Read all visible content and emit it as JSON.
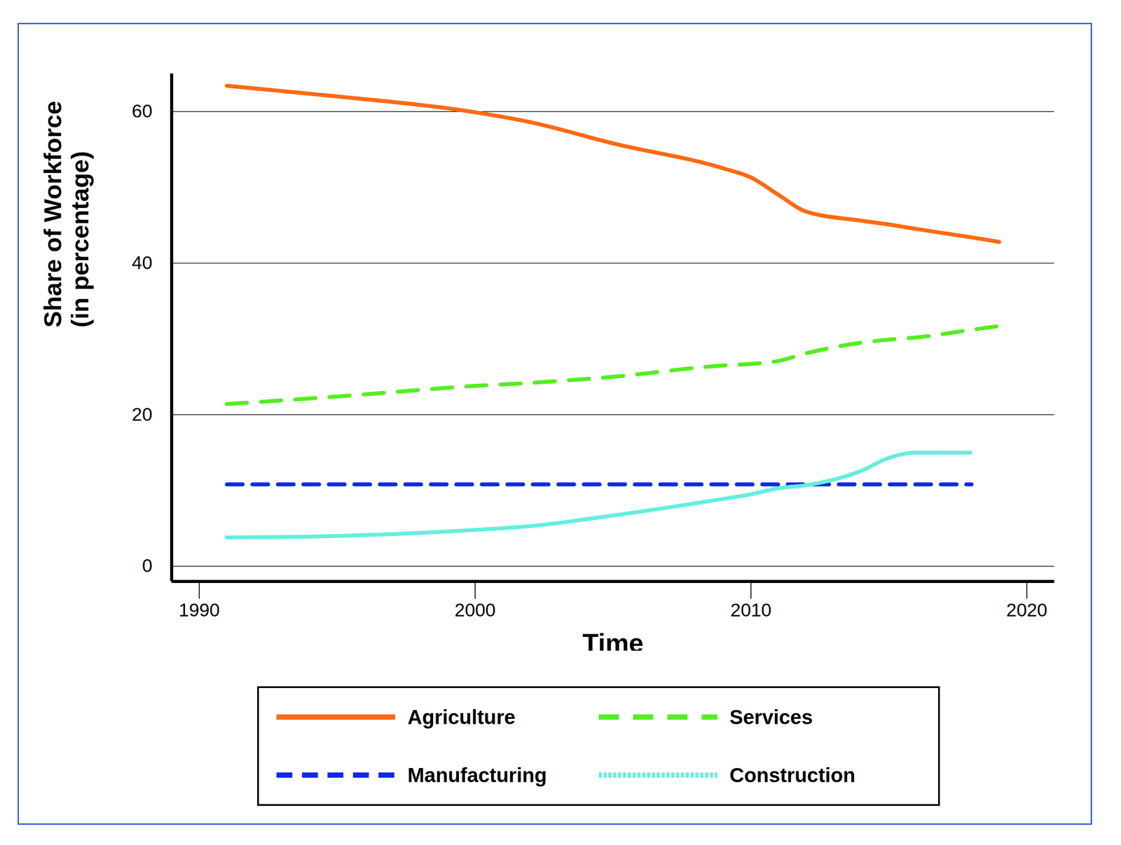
{
  "chart_data": {
    "type": "line",
    "x_label": "Time",
    "y_label": "Share of Workforce\n(in percentage)",
    "x": [
      1991,
      1995,
      2000,
      2002,
      2005,
      2009,
      2010,
      2011,
      2012,
      2014,
      2015,
      2016,
      2018,
      2019
    ],
    "series": [
      {
        "name": "Agriculture",
        "color": "#ff6a13",
        "line_style": "solid",
        "values": [
          63.4,
          62.0,
          59.9,
          58.6,
          55.8,
          52.5,
          51.3,
          49.0,
          46.8,
          45.6,
          45.1,
          44.5,
          43.4,
          42.8
        ]
      },
      {
        "name": "Services",
        "color": "#55ee22",
        "line_style": "dashed",
        "values": [
          21.4,
          22.4,
          23.8,
          24.2,
          25.0,
          26.5,
          26.7,
          27.1,
          28.1,
          29.5,
          29.9,
          30.2,
          31.2,
          31.7
        ]
      },
      {
        "name": "Manufacturing",
        "color": "#1128ee",
        "line_style": "dashed",
        "values": [
          10.8,
          10.8,
          10.8,
          10.8,
          10.8,
          10.8,
          10.8,
          10.8,
          10.8,
          10.8,
          10.8,
          10.8,
          10.8,
          null
        ]
      },
      {
        "name": "Construction",
        "color": "#66eedd",
        "line_style": "dotted",
        "values": [
          3.8,
          4.0,
          4.8,
          5.3,
          6.7,
          8.9,
          9.5,
          10.3,
          10.7,
          12.6,
          14.3,
          15.0,
          15.0,
          null
        ]
      }
    ],
    "xlim": [
      1989,
      2021
    ],
    "xticks": [
      1990,
      2000,
      2010,
      2020
    ],
    "ylim": [
      -2,
      65
    ],
    "yticks": [
      0,
      20,
      40,
      60
    ],
    "grid": true,
    "legend": "bottom"
  }
}
